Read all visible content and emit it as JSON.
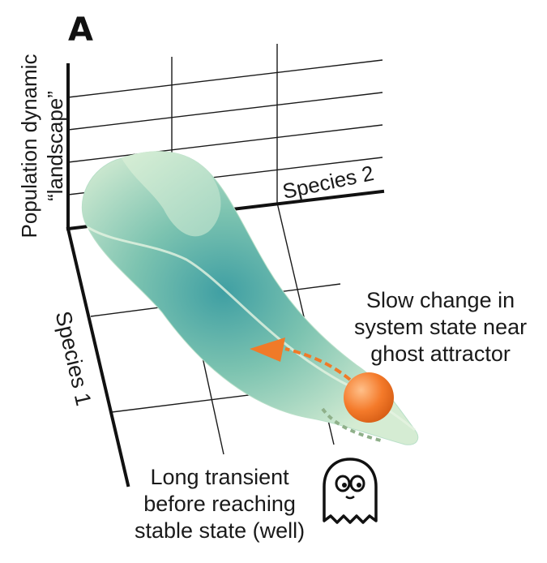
{
  "panel_label": "A",
  "axes": {
    "vertical_label_line1": "Population dynamic",
    "vertical_label_line2": "“landscape”",
    "species1_label": "Species 1",
    "species2_label": "Species 2"
  },
  "annotations": {
    "ghost_note": [
      "Slow change in",
      "system state near",
      "ghost attractor"
    ],
    "transient_note": [
      "Long transient",
      "before reaching",
      "stable state (well)"
    ]
  },
  "colors": {
    "surface_light": "#cfe9cf",
    "surface_dark": "#4aa9a7",
    "ball": "#f47a2a",
    "arrow": "#f07a28",
    "ghost_trail": "#8fb08a"
  },
  "icons": [
    "ghost-icon",
    "ball-marker",
    "direction-arrow"
  ]
}
